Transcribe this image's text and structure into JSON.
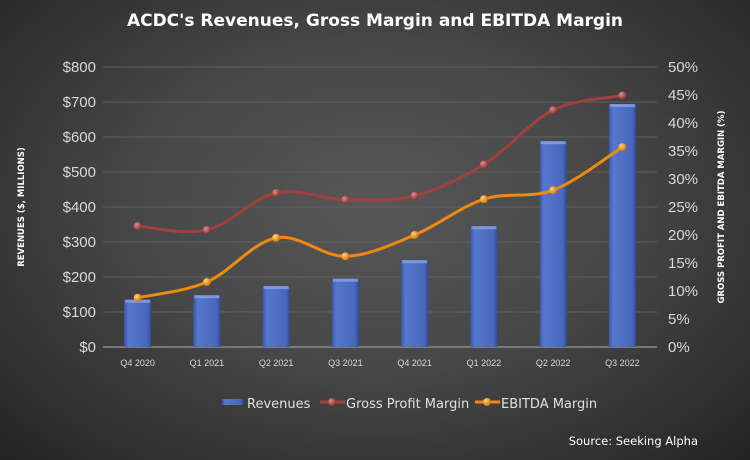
{
  "chart_data": {
    "type": "bar+line",
    "title": "ACDC's Revenues, Gross Margin and EBITDA Margin",
    "categories": [
      "Q4 2020",
      "Q1 2021",
      "Q2 2021",
      "Q3 2021",
      "Q4 2021",
      "Q1 2022",
      "Q2 2022",
      "Q3 2022"
    ],
    "ylabel": "REVENUES ($, MILLIONS)",
    "y2label": "GROSS PROFIT AND EBITDA MARGIN (%)",
    "ylim": [
      0,
      800
    ],
    "y2lim": [
      0,
      50
    ],
    "yticks": [
      "$0",
      "$100",
      "$200",
      "$300",
      "$400",
      "$500",
      "$600",
      "$700",
      "$800"
    ],
    "y2ticks": [
      "0%",
      "5%",
      "10%",
      "15%",
      "20%",
      "25%",
      "30%",
      "35%",
      "40%",
      "45%",
      "50%"
    ],
    "grid": true,
    "legend_position": "bottom",
    "series": [
      {
        "name": "Revenues",
        "type": "bar",
        "axis": "left",
        "color": "#4f6fc8",
        "values": [
          135,
          148,
          174,
          195,
          248,
          345,
          588,
          694
        ]
      },
      {
        "name": "Gross Profit Margin",
        "type": "line",
        "axis": "right",
        "color": "#a0403f",
        "values": [
          21.6,
          20.9,
          27.5,
          26.3,
          27.0,
          32.6,
          42.3,
          44.9
        ]
      },
      {
        "name": "EBITDA Margin",
        "type": "line",
        "axis": "right",
        "color": "#f0890f",
        "values": [
          8.8,
          11.6,
          19.5,
          16.2,
          20.0,
          26.4,
          28.0,
          35.7
        ]
      }
    ],
    "source": "Source: Seeking Alpha"
  }
}
